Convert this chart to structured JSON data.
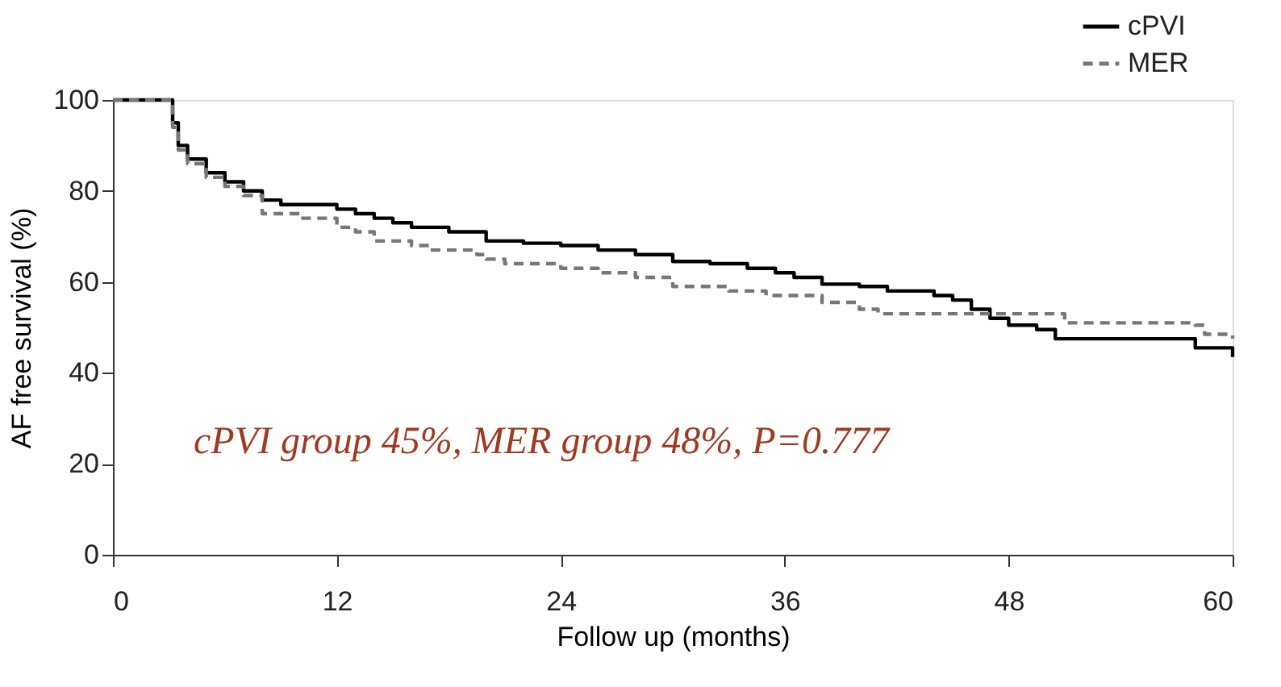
{
  "chart_data": {
    "type": "step",
    "xlabel": "Follow up (months)",
    "ylabel": "AF free survival (%)",
    "xlim": [
      0,
      60
    ],
    "xticks": [
      0,
      12,
      24,
      36,
      48,
      60
    ],
    "ylim": [
      0,
      100
    ],
    "yticks": [
      0,
      20,
      40,
      60,
      80,
      100
    ],
    "grid": false,
    "legend": "top right",
    "marker": "none",
    "annotations": [
      "cPVI group 45%, MER group 48%, P=0.777"
    ],
    "series": [
      {
        "name": "cPVI",
        "color": "#000000",
        "line_style": "solid",
        "x": [
          0,
          3,
          3.2,
          3.5,
          4,
          5,
          6,
          7,
          8,
          9,
          12,
          13,
          14,
          15,
          16,
          18,
          20,
          22,
          24,
          26,
          28,
          30,
          32,
          34,
          35.5,
          36.5,
          38,
          40,
          41.5,
          44,
          45,
          46,
          47,
          48,
          49.5,
          50.5,
          58,
          60
        ],
        "values": [
          100,
          100,
          95,
          90,
          87,
          84,
          82,
          80,
          78,
          77,
          76,
          75,
          74,
          73,
          72,
          71,
          69,
          68.5,
          68,
          67,
          66,
          64.5,
          64,
          63,
          62,
          61,
          59.5,
          59,
          58,
          57,
          56,
          54,
          52,
          50.5,
          49.5,
          47.5,
          45.5,
          43.5
        ]
      },
      {
        "name": "MER",
        "color": "#777777",
        "line_style": "dashed",
        "x": [
          0,
          3,
          3.2,
          3.5,
          4,
          5,
          6,
          7,
          8,
          10,
          12,
          13,
          14,
          16,
          17,
          19.5,
          20,
          21,
          24,
          26,
          28,
          30,
          33,
          35,
          38,
          40,
          41,
          48,
          51,
          58,
          58.5,
          60
        ],
        "values": [
          100,
          100,
          94,
          89,
          86,
          83,
          81,
          79,
          75,
          74,
          72,
          71,
          69,
          68,
          67,
          66,
          65,
          64,
          63,
          62,
          61,
          59,
          58,
          57,
          55.5,
          54,
          53,
          53,
          51,
          50.5,
          48.5,
          47.5
        ]
      }
    ]
  }
}
